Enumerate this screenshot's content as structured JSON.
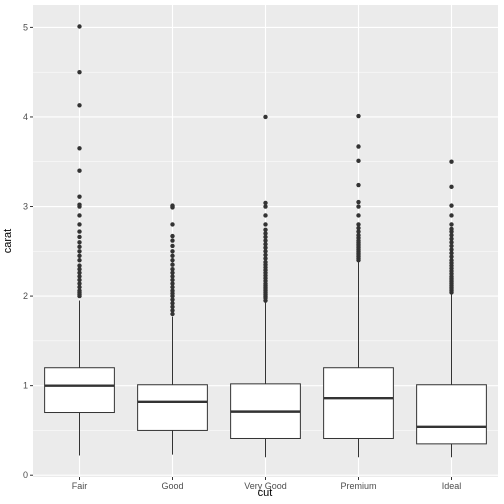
{
  "chart_data": {
    "type": "boxplot",
    "xlabel": "cut",
    "ylabel": "carat",
    "ylim": [
      -0.02,
      5.25
    ],
    "yticks": [
      0,
      1,
      2,
      3,
      4,
      5
    ],
    "categories": [
      "Fair",
      "Good",
      "Very Good",
      "Premium",
      "Ideal"
    ],
    "boxes": [
      {
        "category": "Fair",
        "whisker_low": 0.22,
        "q1": 0.7,
        "median": 1.0,
        "q3": 1.2,
        "whisker_high": 1.95,
        "outliers": [
          2.0,
          2.02,
          2.04,
          2.06,
          2.1,
          2.14,
          2.18,
          2.22,
          2.26,
          2.3,
          2.34,
          2.4,
          2.45,
          2.5,
          2.55,
          2.6,
          2.66,
          2.72,
          2.8,
          2.9,
          3.0,
          3.02,
          3.11,
          3.4,
          3.65,
          4.13,
          4.5,
          5.01
        ]
      },
      {
        "category": "Good",
        "whisker_low": 0.23,
        "q1": 0.5,
        "median": 0.82,
        "q3": 1.01,
        "whisker_high": 1.77,
        "outliers": [
          1.8,
          1.84,
          1.88,
          1.92,
          1.96,
          2.0,
          2.03,
          2.06,
          2.1,
          2.14,
          2.18,
          2.22,
          2.26,
          2.3,
          2.35,
          2.4,
          2.45,
          2.5,
          2.56,
          2.62,
          2.67,
          2.8,
          2.99,
          3.0,
          3.01
        ]
      },
      {
        "category": "Very Good",
        "whisker_low": 0.2,
        "q1": 0.41,
        "median": 0.71,
        "q3": 1.02,
        "whisker_high": 1.93,
        "outliers": [
          1.95,
          1.98,
          2.0,
          2.02,
          2.04,
          2.06,
          2.08,
          2.1,
          2.12,
          2.14,
          2.17,
          2.2,
          2.23,
          2.26,
          2.29,
          2.32,
          2.35,
          2.38,
          2.42,
          2.46,
          2.5,
          2.54,
          2.58,
          2.62,
          2.66,
          2.7,
          2.74,
          2.8,
          2.9,
          3.0,
          3.04,
          4.0
        ]
      },
      {
        "category": "Premium",
        "whisker_low": 0.2,
        "q1": 0.41,
        "median": 0.86,
        "q3": 1.2,
        "whisker_high": 2.38,
        "outliers": [
          2.4,
          2.42,
          2.44,
          2.46,
          2.48,
          2.5,
          2.52,
          2.54,
          2.56,
          2.58,
          2.6,
          2.62,
          2.65,
          2.68,
          2.72,
          2.76,
          2.8,
          2.9,
          3.0,
          3.05,
          3.24,
          3.51,
          3.67,
          4.01
        ]
      },
      {
        "category": "Ideal",
        "whisker_low": 0.2,
        "q1": 0.35,
        "median": 0.54,
        "q3": 1.01,
        "whisker_high": 2.03,
        "outliers": [
          2.04,
          2.06,
          2.08,
          2.1,
          2.12,
          2.14,
          2.16,
          2.18,
          2.2,
          2.22,
          2.25,
          2.28,
          2.31,
          2.34,
          2.37,
          2.4,
          2.44,
          2.48,
          2.52,
          2.56,
          2.6,
          2.64,
          2.68,
          2.72,
          2.75,
          2.8,
          2.9,
          3.01,
          3.22,
          3.5
        ]
      }
    ],
    "grid": true,
    "panel_background": "#ebebeb",
    "box_fill": "#ffffff",
    "line_color": "#333333",
    "outlier_color": "#333333",
    "tick_text_color": "#4d4d4d"
  }
}
